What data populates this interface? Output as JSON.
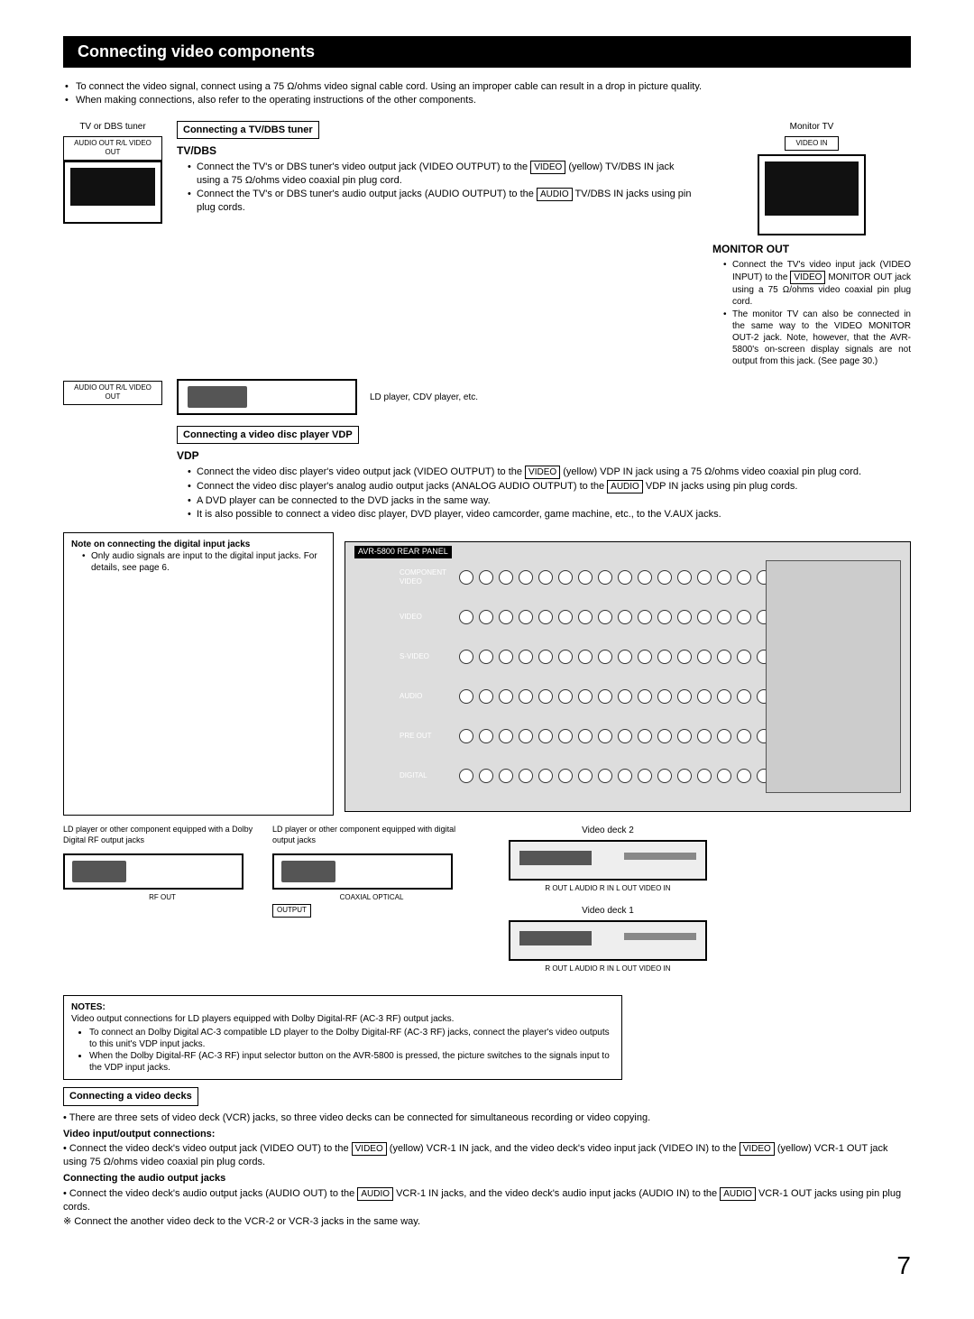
{
  "page": {
    "header": "Connecting video components",
    "intro": [
      "To connect the video signal, connect using a 75 Ω/ohms video signal cable cord. Using an improper cable can result in a drop in picture quality.",
      "When making connections, also refer to the operating instructions of the other components."
    ],
    "page_number": "7"
  },
  "tvdbs": {
    "device_label": "TV or DBS tuner",
    "jacks_label": "AUDIO OUT R/L  VIDEO OUT",
    "section_box": "Connecting a TV/DBS tuner",
    "subhead": "TV/DBS",
    "bullet1_a": "Connect the TV's or DBS tuner's video output jack (VIDEO OUTPUT) to the ",
    "bullet1_tag": "VIDEO",
    "bullet1_b": " (yellow) TV/DBS IN jack using a 75 Ω/ohms video coaxial pin plug cord.",
    "bullet2_a": "Connect the TV's or DBS tuner's audio output jacks (AUDIO OUTPUT) to the ",
    "bullet2_tag": "AUDIO",
    "bullet2_b": " TV/DBS IN jacks using pin plug cords."
  },
  "vdp": {
    "ld_caption": "LD player, CDV player, etc.",
    "jacks_label": "AUDIO OUT R/L  VIDEO OUT",
    "section_box": "Connecting a video disc player VDP",
    "subhead": "VDP",
    "b1a": "Connect the video disc player's video output jack (VIDEO OUTPUT) to the ",
    "b1tag": "VIDEO",
    "b1b": " (yellow) VDP IN jack using a 75 Ω/ohms video coaxial pin plug cord.",
    "b2a": "Connect the video disc player's analog audio output jacks (ANALOG AUDIO OUTPUT) to the ",
    "b2tag": "AUDIO",
    "b2b": " VDP IN jacks using pin plug cords.",
    "b3": "A DVD player can be connected to the DVD jacks in the same way.",
    "b4": "It is also possible to connect a video disc player, DVD player, video camcorder, game machine, etc., to the V.AUX jacks."
  },
  "monitor": {
    "top_label": "Monitor TV",
    "jacks": "VIDEO IN",
    "subhead": "MONITOR OUT",
    "b1a": "Connect the TV's video input jack (VIDEO INPUT) to the ",
    "b1tag": "VIDEO",
    "b1b": " MONITOR OUT jack using a 75 Ω/ohms video coaxial pin plug cord.",
    "b2": "The monitor TV can also be connected in the same way to the VIDEO MONITOR OUT-2 jack. Note, however, that the AVR-5800's on-screen display signals are not output from this jack. (See page 30.)"
  },
  "digital_note": {
    "head": "Note on connecting the digital input jacks",
    "body": "Only audio signals are input to the digital input jacks. For details, see page 6."
  },
  "receiver_rows": [
    "COMPONENT VIDEO",
    "VIDEO",
    "S-VIDEO",
    "AUDIO",
    "PRE OUT",
    "DIGITAL"
  ],
  "bottom_devices": {
    "ld_rf_caption": "LD player or other component equipped with a Dolby Digital RF output jacks",
    "ld_rf_out": "RF OUT",
    "ld_digital_caption": "LD player or other component equipped with digital output jacks",
    "ld_digital_out": "COAXIAL  OPTICAL",
    "output_label": "OUTPUT",
    "vd2_label": "Video deck 2",
    "vd1_label": "Video deck 1",
    "vd_jacks": "R OUT L AUDIO R IN L   OUT VIDEO IN"
  },
  "notes": {
    "head": "NOTES:",
    "line1": "Video output connections for LD players equipped with Dolby Digital-RF (AC-3 RF) output jacks.",
    "li1": "To connect an Dolby Digital AC-3 compatible LD player to the Dolby Digital-RF (AC-3 RF) jacks, connect the player's video outputs to this unit's VDP input jacks.",
    "li2": "When the Dolby Digital-RF (AC-3 RF) input selector button on the AVR-5800 is pressed, the picture switches to the signals input to the VDP input jacks."
  },
  "decks": {
    "section_box": "Connecting a video decks",
    "p1": "There are three sets of video deck (VCR) jacks, so three video decks can be connected for simultaneous recording or video copying.",
    "h1": "Video input/output connections:",
    "p2a": "Connect the video deck's video output jack (VIDEO OUT) to the ",
    "p2tag": "VIDEO",
    "p2b": " (yellow) VCR-1 IN jack, and the video deck's video input jack (VIDEO IN) to the ",
    "p2tag2": "VIDEO",
    "p2c": " (yellow) VCR-1 OUT jack using 75 Ω/ohms video coaxial pin plug cords.",
    "h2": "Connecting the audio output jacks",
    "p3a": "Connect the video deck's audio output jacks (AUDIO OUT) to the ",
    "p3tag": "AUDIO",
    "p3b": " VCR-1 IN jacks, and the video deck's audio input jacks (AUDIO IN) to the ",
    "p3tag2": "AUDIO",
    "p3c": " VCR-1 OUT jacks using pin plug cords.",
    "p4": "※ Connect the another video deck to the VCR-2 or VCR-3 jacks in the same way."
  }
}
